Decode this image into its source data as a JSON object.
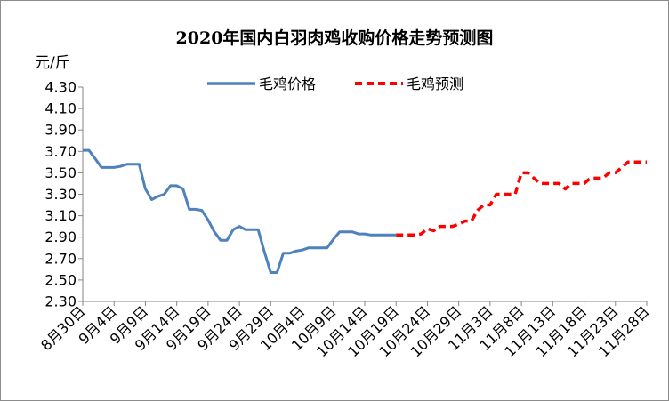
{
  "chart_data": {
    "type": "line",
    "title": "2020年国内白羽肉鸡收购价格走势预测图",
    "ylabel": "元/斤",
    "xlabel": "",
    "ylim": [
      2.3,
      4.3
    ],
    "yticks": [
      "4.30",
      "4.10",
      "3.90",
      "3.70",
      "3.50",
      "3.30",
      "3.10",
      "2.90",
      "2.70",
      "2.50",
      "2.30"
    ],
    "grid": false,
    "legend": "top-center",
    "x_tick_labels": [
      "8月30日",
      "9月4日",
      "9月9日",
      "9月14日",
      "9月19日",
      "9月24日",
      "9月29日",
      "10月4日",
      "10月9日",
      "10月14日",
      "10月19日",
      "10月24日",
      "10月29日",
      "11月3日",
      "11月8日",
      "11月13日",
      "11月18日",
      "11月23日",
      "11月28日"
    ],
    "colors": {
      "actual": "#4f81bd",
      "forecast": "#ff0000"
    },
    "series": [
      {
        "name": "毛鸡价格",
        "style": "solid",
        "x": [
          0,
          1,
          2,
          3,
          4,
          5,
          6,
          7,
          8,
          9,
          10,
          11,
          12,
          13,
          14,
          15,
          16,
          17,
          18,
          19,
          20,
          21,
          22,
          23,
          24,
          25,
          26,
          27,
          28,
          29,
          30,
          31,
          32,
          33,
          34,
          35,
          36,
          37,
          38,
          39,
          40,
          41,
          42,
          43,
          44,
          45,
          46,
          47,
          48,
          49,
          50
        ],
        "y": [
          3.71,
          3.71,
          3.63,
          3.55,
          3.55,
          3.55,
          3.56,
          3.58,
          3.58,
          3.58,
          3.35,
          3.25,
          3.28,
          3.3,
          3.38,
          3.38,
          3.35,
          3.16,
          3.16,
          3.15,
          3.06,
          2.95,
          2.87,
          2.87,
          2.97,
          3.0,
          2.97,
          2.97,
          2.97,
          2.76,
          2.57,
          2.57,
          2.75,
          2.75,
          2.77,
          2.78,
          2.8,
          2.8,
          2.8,
          2.8,
          2.88,
          2.95,
          2.95,
          2.95,
          2.93,
          2.93,
          2.92,
          2.92,
          2.92,
          2.92,
          2.92
        ]
      },
      {
        "name": "毛鸡预测",
        "style": "dashed",
        "x": [
          50,
          51,
          52,
          53,
          54,
          55,
          56,
          57,
          58,
          59,
          60,
          61,
          62,
          63,
          64,
          65,
          66,
          67,
          68,
          69,
          70,
          71,
          72,
          73,
          74,
          75,
          76,
          77,
          78,
          79,
          80,
          81,
          82,
          83,
          84,
          85,
          86,
          87,
          88,
          89,
          90
        ],
        "y": [
          2.92,
          2.92,
          2.92,
          2.92,
          2.93,
          2.98,
          2.96,
          3.0,
          3.0,
          3.0,
          3.02,
          3.05,
          3.05,
          3.15,
          3.2,
          3.2,
          3.3,
          3.3,
          3.3,
          3.3,
          3.5,
          3.5,
          3.45,
          3.4,
          3.4,
          3.4,
          3.4,
          3.35,
          3.4,
          3.4,
          3.4,
          3.45,
          3.45,
          3.45,
          3.5,
          3.5,
          3.55,
          3.6,
          3.6,
          3.6,
          3.6
        ]
      }
    ]
  }
}
